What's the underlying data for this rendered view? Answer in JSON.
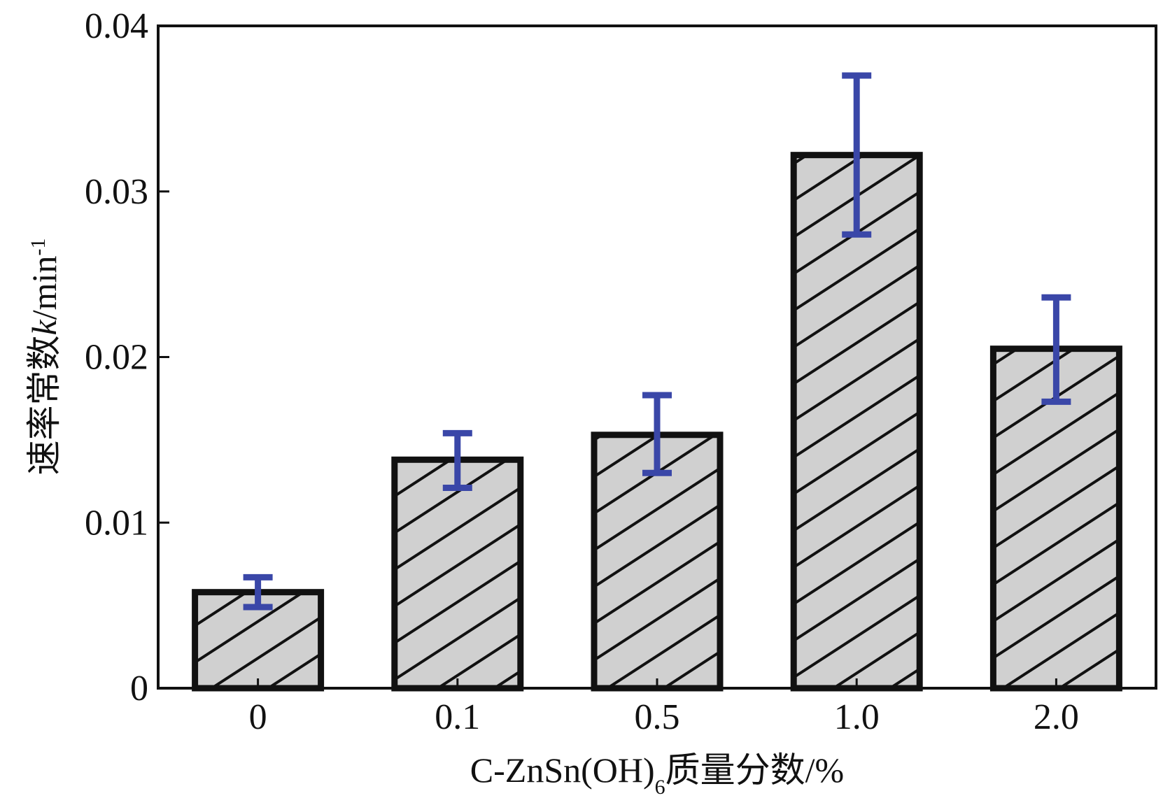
{
  "colors": {
    "bar_fill": "#d0d0d0",
    "bar_edge": "#111111",
    "hatch": "#111111",
    "error_bar": "#3a47a8",
    "axis": "#111111"
  },
  "chart_data": {
    "type": "bar",
    "categories": [
      "0",
      "0.1",
      "0.5",
      "1.0",
      "2.0"
    ],
    "values": [
      0.0058,
      0.0138,
      0.0153,
      0.0322,
      0.0205
    ],
    "error_low": [
      0.0049,
      0.0121,
      0.013,
      0.0274,
      0.0173
    ],
    "error_high": [
      0.0067,
      0.0154,
      0.0177,
      0.037,
      0.0236
    ],
    "ylim": [
      0,
      0.04
    ],
    "yticks": [
      "0",
      "0.01",
      "0.02",
      "0.03",
      "0.04"
    ],
    "ytick_values": [
      0,
      0.01,
      0.02,
      0.03,
      0.04
    ],
    "xlabel": "C-ZnSn(OH)6质量分数/%",
    "xlabel_parts": {
      "prefix": "C-ZnSn(OH)",
      "subscript": "6",
      "suffix": "质量分数/%"
    },
    "ylabel": "速率常数k/min-1",
    "ylabel_parts": {
      "prefix": "速率常数",
      "italic": "k",
      "unit": "/min",
      "superscript": "-1"
    },
    "hatch_pattern": "diagonal",
    "grid": false
  }
}
